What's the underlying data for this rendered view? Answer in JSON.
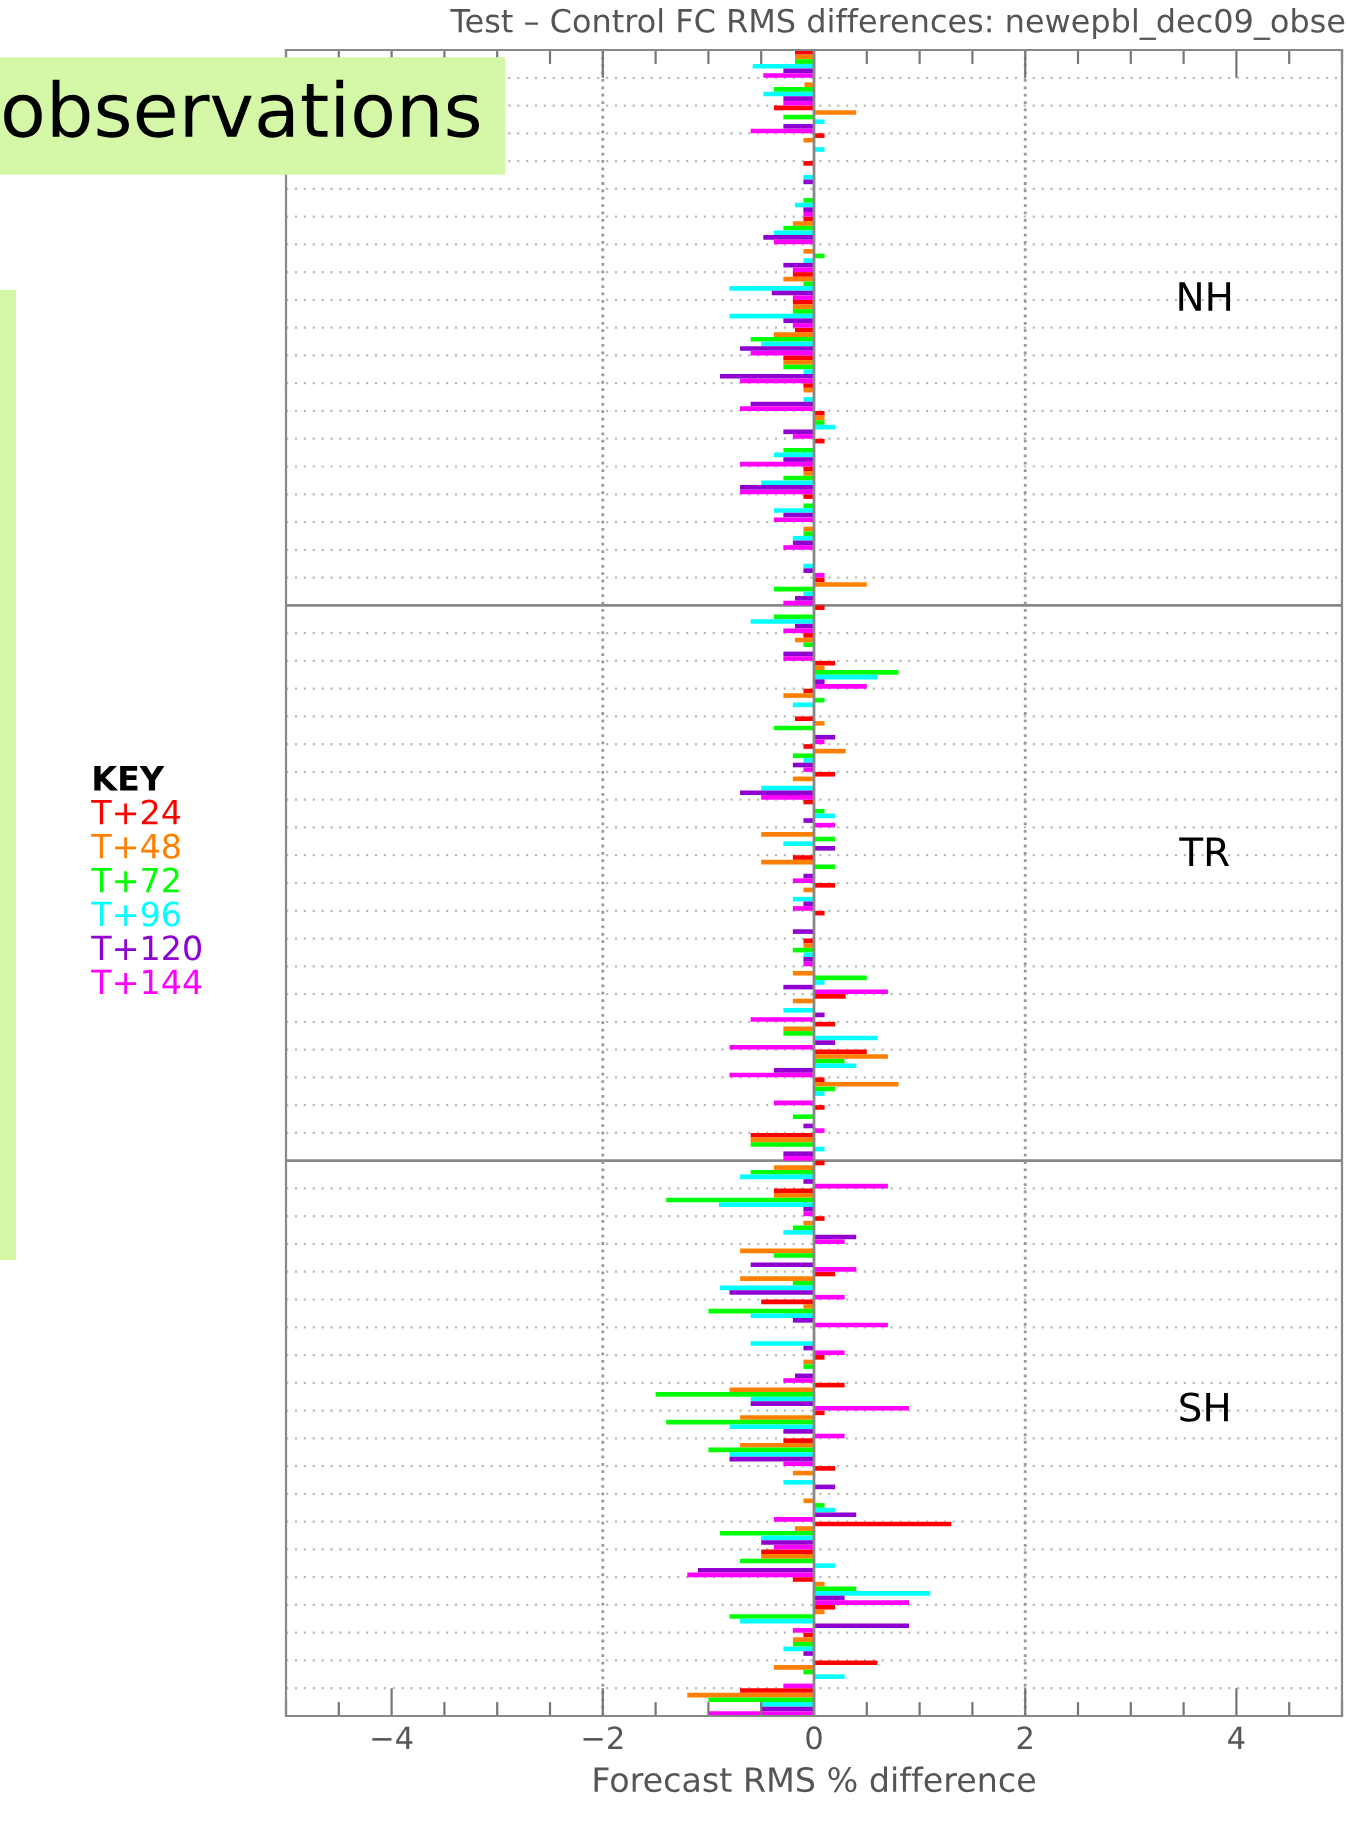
{
  "chart_data": {
    "type": "bar",
    "orientation": "horizontal",
    "title": "Test – Control FC RMS differences: newepbl_dec09_obse",
    "subtitle": "observations",
    "annotations": [
      "NH",
      "TR",
      "SH"
    ],
    "xlabel": "Forecast RMS % difference",
    "legend": "left",
    "legend_title": "KEY",
    "categories": [
      null,
      null,
      null,
      null,
      null,
      null,
      null,
      null,
      null,
      null,
      null,
      null,
      null,
      null,
      null,
      null,
      null,
      null,
      null,
      null,
      null,
      null,
      null,
      null,
      null,
      null,
      null,
      null,
      null,
      null,
      null,
      null,
      null,
      null,
      null,
      null,
      null,
      null,
      null,
      null,
      null,
      null,
      null,
      null,
      null,
      null,
      null,
      null,
      null,
      null,
      null,
      null,
      null,
      null,
      null,
      null,
      null,
      null,
      null,
      null
    ],
    "series": [
      {
        "name": "T+24",
        "color": "#ff0000",
        "values": [
          -0.18,
          0,
          -0.38,
          0.1,
          -0.1,
          0,
          -0.1,
          0,
          -0.2,
          -0.2,
          -0.18,
          -0.29,
          -0.1,
          0.1,
          0.1,
          -0.1,
          -0.1,
          0,
          0,
          0.1,
          0.1,
          -0.1,
          0.2,
          -0.1,
          -0.18,
          -0.1,
          0.2,
          -0.1,
          0,
          -0.2,
          0.2,
          0.1,
          -0.1,
          0,
          0.3,
          0.2,
          0.5,
          0.1,
          0.1,
          -0.6,
          0.1,
          -0.38,
          0.1,
          0,
          0.2,
          -0.5,
          0,
          0.1,
          0.29,
          0.1,
          -0.29,
          0.2,
          0,
          1.3,
          -0.5,
          -0.2,
          0.2,
          -0.1,
          0.6,
          -0.7
        ]
      },
      {
        "name": "T+48",
        "color": "#ff8000",
        "values": [
          -0.18,
          -0.09,
          0.4,
          -0.1,
          0,
          0,
          -0.2,
          -0.1,
          -0.29,
          -0.2,
          -0.38,
          -0.29,
          -0.1,
          0.1,
          0,
          -0.1,
          0,
          -0.1,
          0,
          0.5,
          0,
          -0.18,
          0.1,
          -0.29,
          0.1,
          0.3,
          -0.2,
          0,
          -0.5,
          -0.5,
          -0.1,
          0,
          -0.1,
          -0.2,
          -0.2,
          -0.29,
          0.7,
          0.8,
          0,
          -0.6,
          -0.38,
          -0.38,
          -0.1,
          -0.7,
          -0.7,
          -0.1,
          0,
          -0.1,
          -0.8,
          -0.7,
          -0.7,
          -0.2,
          -0.1,
          -0.18,
          -0.5,
          0.1,
          0.1,
          -0.2,
          -0.38,
          -1.2
        ]
      },
      {
        "name": "T+72",
        "color": "#00ff00",
        "values": [
          -0.18,
          -0.38,
          -0.29,
          0,
          0,
          -0.1,
          -0.29,
          0.1,
          -0.1,
          -0.2,
          -0.6,
          -0.29,
          0,
          0.1,
          -0.29,
          -0.29,
          -0.1,
          -0.1,
          0,
          -0.38,
          -0.38,
          -0.1,
          0.8,
          0.1,
          -0.38,
          -0.2,
          0,
          0.1,
          0.2,
          0.2,
          0,
          0,
          -0.2,
          0.5,
          0,
          -0.29,
          0.29,
          0.2,
          -0.2,
          -0.6,
          -0.6,
          -1.4,
          -0.2,
          -0.38,
          -0.2,
          -1.0,
          0,
          -0.1,
          -1.5,
          -1.4,
          -1.0,
          0,
          0.1,
          -0.89,
          -0.7,
          0.4,
          -0.8,
          -0.2,
          -0.1,
          -1.0
        ]
      },
      {
        "name": "T+96",
        "color": "#00ffff",
        "values": [
          -0.58,
          -0.48,
          0.1,
          0.1,
          -0.1,
          -0.18,
          -0.38,
          -0.1,
          -0.8,
          -0.8,
          -0.5,
          -0.1,
          -0.1,
          0.2,
          -0.38,
          -0.5,
          -0.38,
          -0.2,
          -0.1,
          -0.1,
          -0.6,
          0,
          0.6,
          -0.2,
          0,
          -0.1,
          -0.5,
          0.2,
          -0.29,
          0,
          -0.2,
          0,
          -0.1,
          0.1,
          -0.29,
          0.6,
          0.4,
          0.1,
          0,
          0.1,
          -0.7,
          -0.9,
          -0.29,
          0,
          -0.89,
          -0.6,
          -0.6,
          0,
          -0.6,
          -0.8,
          -0.8,
          -0.29,
          0.2,
          -0.5,
          0.2,
          1.1,
          -0.7,
          -0.29,
          0.29,
          -0.5
        ]
      },
      {
        "name": "T+120",
        "color": "#9000d0",
        "values": [
          -0.29,
          -0.29,
          -0.29,
          0,
          -0.1,
          -0.1,
          -0.48,
          -0.29,
          -0.4,
          -0.29,
          -0.7,
          -0.89,
          -0.6,
          -0.29,
          -0.29,
          -0.7,
          -0.29,
          -0.2,
          -0.1,
          -0.18,
          -0.18,
          -0.29,
          0.1,
          0,
          0.2,
          -0.2,
          -0.7,
          -0.1,
          0.2,
          -0.1,
          -0.1,
          -0.2,
          -0.1,
          -0.29,
          0.1,
          0.2,
          -0.38,
          0,
          -0.1,
          -0.29,
          -0.1,
          -0.1,
          0.4,
          -0.6,
          -0.8,
          -0.2,
          -0.1,
          -0.18,
          -0.6,
          -0.29,
          -0.8,
          0.2,
          0.4,
          -0.5,
          -1.1,
          0.29,
          0.9,
          -0.1,
          0,
          -0.5
        ]
      },
      {
        "name": "T+144",
        "color": "#ff00ff",
        "values": [
          -0.48,
          -0.29,
          -0.6,
          0,
          0,
          -0.1,
          -0.38,
          -0.2,
          -0.2,
          -0.2,
          -0.6,
          -0.7,
          -0.7,
          -0.2,
          -0.7,
          -0.7,
          -0.38,
          -0.29,
          0.1,
          -0.29,
          -0.29,
          -0.29,
          0.5,
          0,
          0.1,
          -0.1,
          -0.5,
          0.2,
          0,
          -0.2,
          -0.2,
          0,
          -0.1,
          0.7,
          -0.6,
          -0.8,
          -0.8,
          -0.38,
          0.1,
          -0.29,
          0.7,
          -0.1,
          0.29,
          0.4,
          0.29,
          0.7,
          0.29,
          -0.29,
          0.9,
          0.29,
          -0.29,
          0,
          -0.38,
          -0.38,
          -1.2,
          0.9,
          -0.2,
          0,
          -0.29,
          -1.0
        ]
      }
    ],
    "xlim": [
      -5,
      5
    ],
    "xticks": [
      {
        "value": -5,
        "label": null
      },
      {
        "value": -4.5,
        "label": null
      },
      {
        "value": -4,
        "label": "−4"
      },
      {
        "value": -3.5,
        "label": null
      },
      {
        "value": -3,
        "label": null
      },
      {
        "value": -2.5,
        "label": null
      },
      {
        "value": -2,
        "label": "−2"
      },
      {
        "value": -1.5,
        "label": null
      },
      {
        "value": -1,
        "label": null
      },
      {
        "value": -0.5,
        "label": null
      },
      {
        "value": 0,
        "label": "0"
      },
      {
        "value": 0.5,
        "label": null
      },
      {
        "value": 1,
        "label": null
      },
      {
        "value": 1.5,
        "label": null
      },
      {
        "value": 2,
        "label": "2"
      },
      {
        "value": 2.5,
        "label": null
      },
      {
        "value": 3,
        "label": null
      },
      {
        "value": 3.5,
        "label": null
      },
      {
        "value": 4,
        "label": "4"
      },
      {
        "value": 4.5,
        "label": null
      },
      {
        "value": 5,
        "label": null
      }
    ],
    "tick_labels": "x",
    "grid": "y",
    "ref_lines": [
      {
        "axis": "x",
        "value": -2,
        "color": "#999999",
        "line_style": "dotted"
      },
      {
        "axis": "x",
        "value": 2,
        "color": "#999999",
        "line_style": "dotted"
      },
      {
        "axis": "x",
        "value": 0,
        "color": "#888888",
        "line_style": "solid"
      }
    ]
  }
}
